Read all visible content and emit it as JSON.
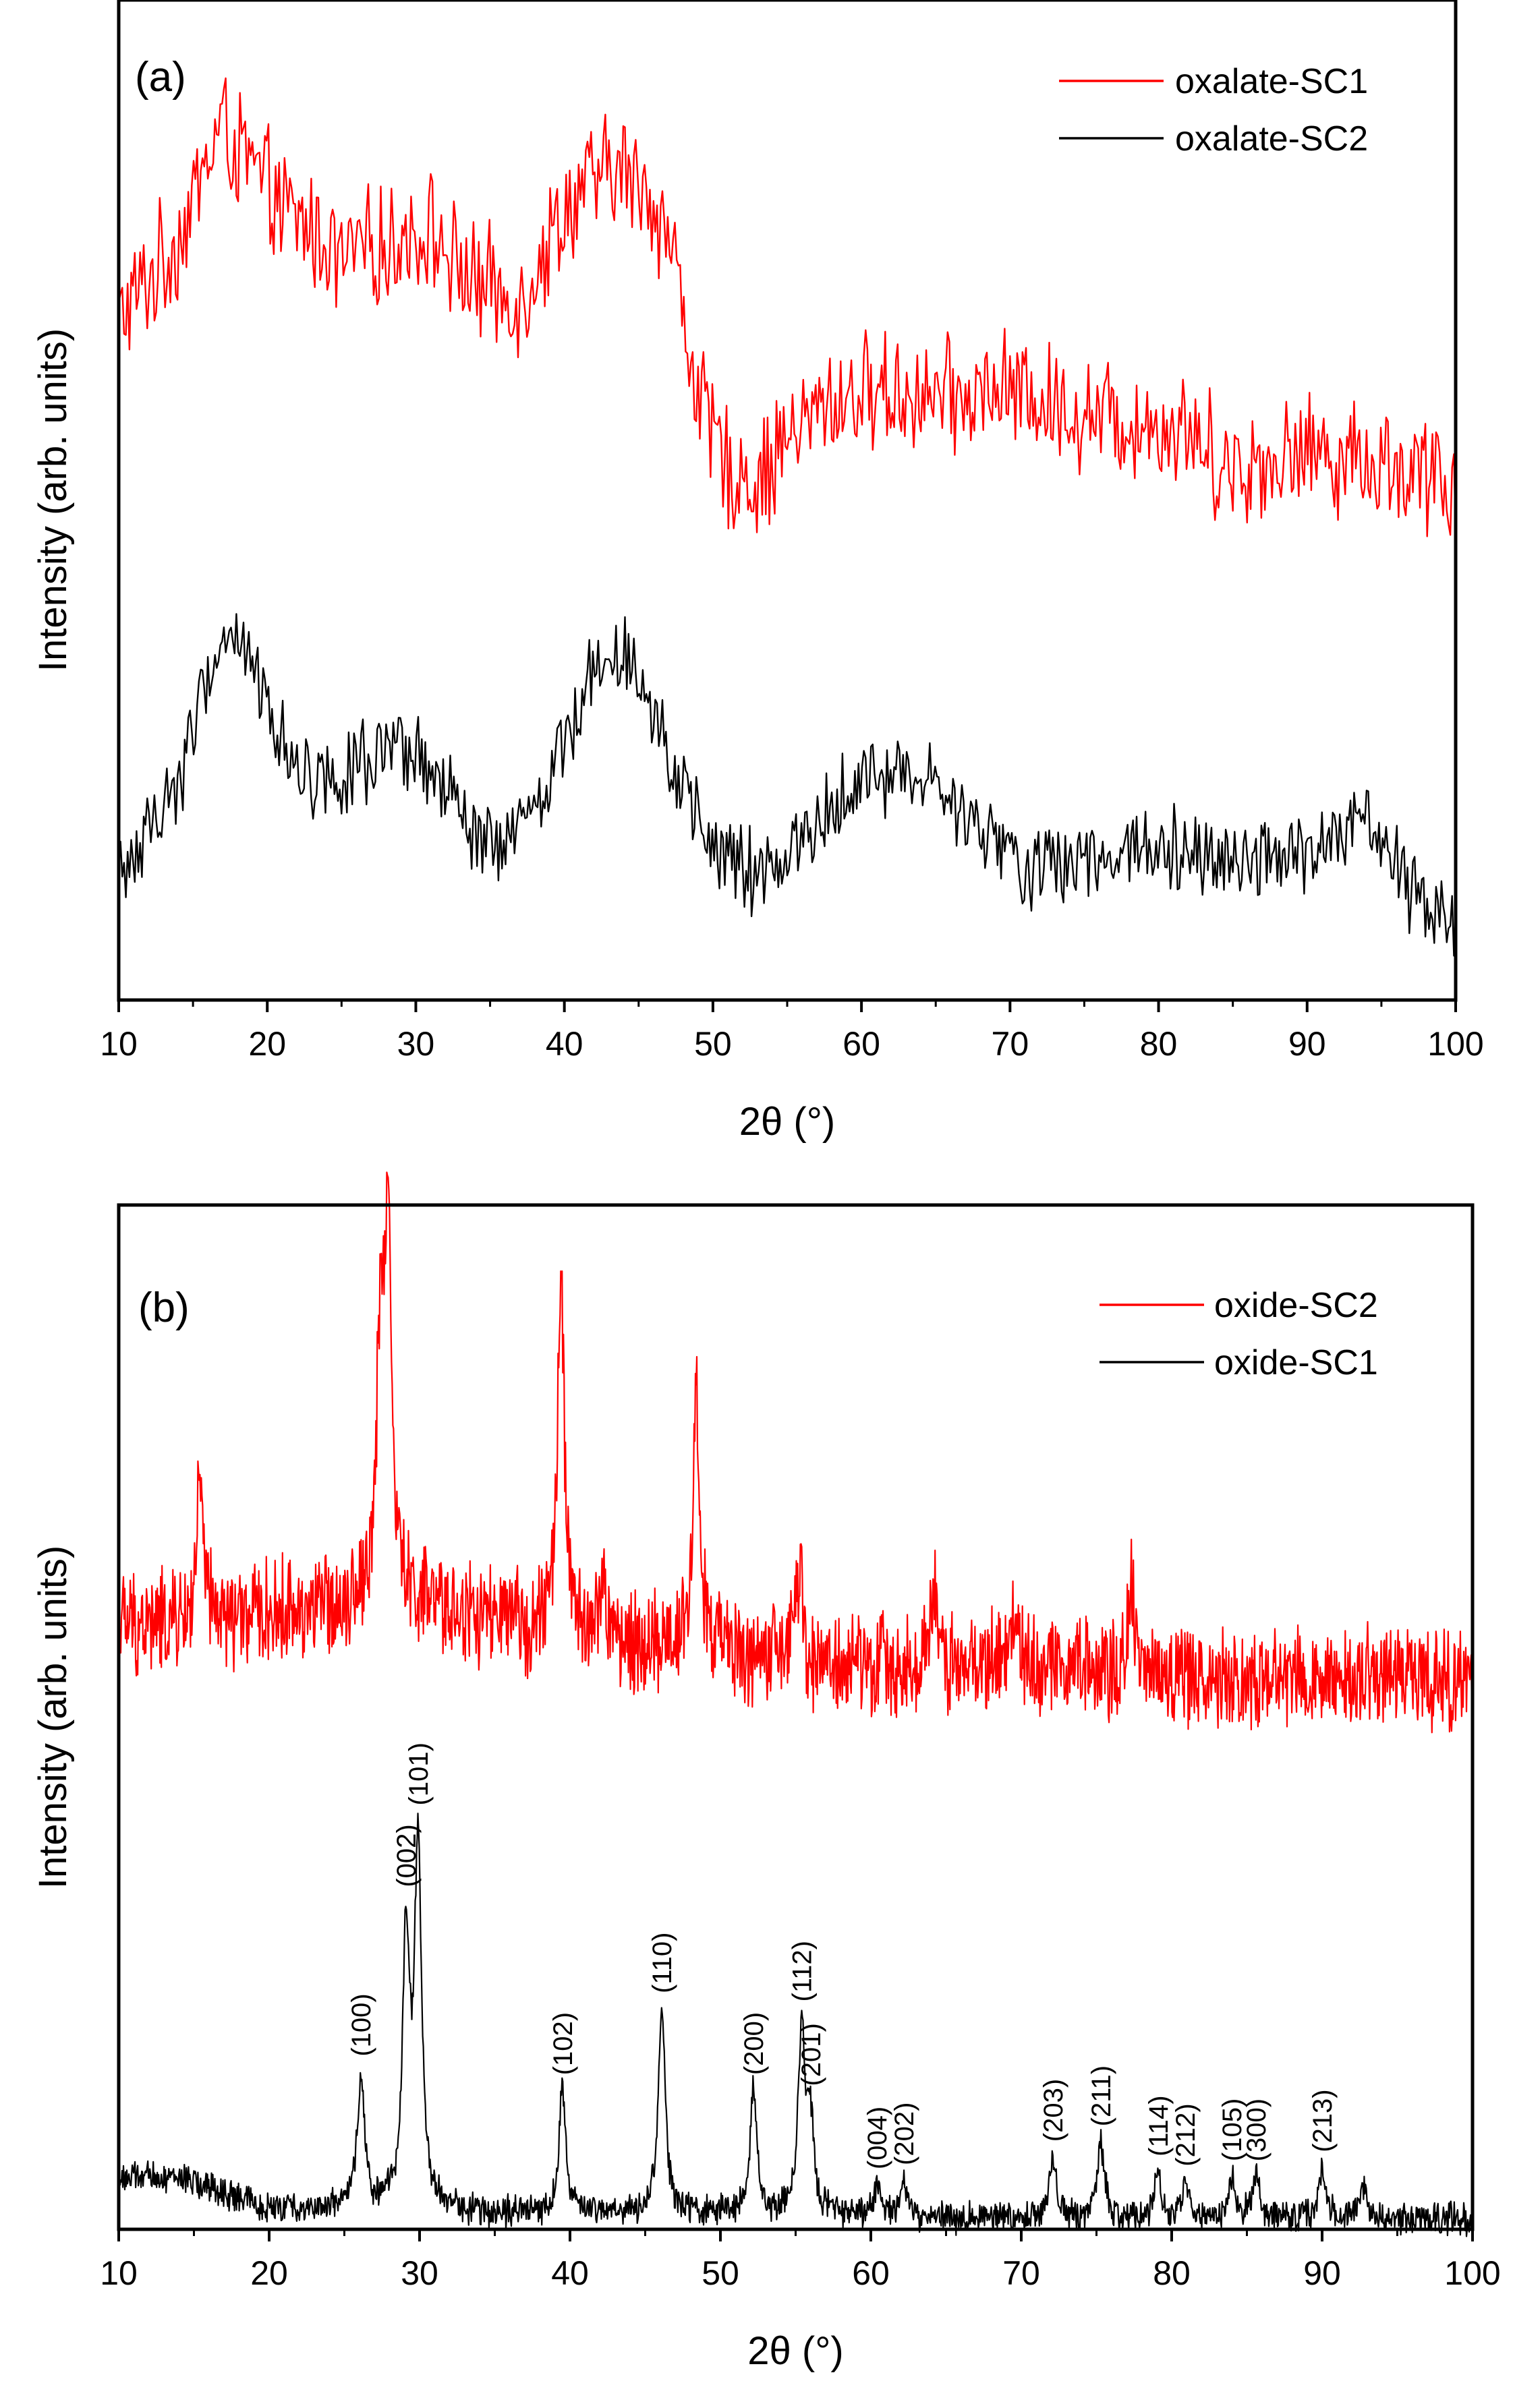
{
  "chart_data": [
    {
      "panel_label": "(a)",
      "type": "line",
      "title": "",
      "xlabel": "2θ (°)",
      "ylabel": "Intensity (arb. units)",
      "xlim": [
        10,
        100
      ],
      "ylim": [
        0,
        100
      ],
      "xticks": [
        10,
        20,
        30,
        40,
        50,
        60,
        70,
        80,
        90,
        100
      ],
      "grid": false,
      "legend_position": "top-right",
      "series": [
        {
          "name": "oxalate-SC1",
          "color": "#ff0000",
          "noise": 7,
          "x": [
            10,
            12,
            14,
            16,
            17,
            18,
            19.5,
            21,
            23,
            25,
            27,
            29,
            31,
            33,
            35,
            37,
            38,
            40,
            42,
            44,
            46,
            47.5,
            49,
            51,
            53,
            55,
            58,
            62,
            66,
            70,
            74,
            78,
            82,
            85,
            88,
            91,
            94,
            97,
            100
          ],
          "y": [
            68,
            72,
            76,
            84,
            88,
            85,
            82,
            79,
            77,
            74,
            75,
            76,
            77,
            73,
            71,
            70,
            73,
            79,
            82,
            83,
            80,
            74,
            60,
            53,
            52,
            56,
            60,
            61,
            60,
            61,
            59,
            58,
            57,
            53,
            54,
            55,
            54,
            53,
            51
          ]
        },
        {
          "name": "oxalate-SC2",
          "color": "#000000",
          "noise": 5,
          "x": [
            10,
            12,
            14,
            16,
            17,
            18,
            19,
            21,
            23,
            25,
            28,
            30,
            32,
            34,
            36,
            38,
            40,
            42,
            43.5,
            45,
            46.5,
            48,
            50,
            53,
            56,
            59,
            62,
            65,
            68,
            71,
            75,
            79,
            83,
            87,
            91,
            94,
            96,
            98,
            100
          ],
          "y": [
            12,
            17,
            22,
            32,
            36,
            37,
            33,
            26,
            22,
            23,
            24,
            24,
            21,
            16,
            15,
            19,
            26,
            33,
            36,
            33,
            28,
            20,
            15,
            12,
            16,
            21,
            23,
            21,
            17,
            13,
            14,
            16,
            15,
            14,
            15,
            18,
            13,
            9,
            8
          ]
        }
      ]
    },
    {
      "panel_label": "(b)",
      "type": "line",
      "title": "",
      "xlabel": "2θ (°)",
      "ylabel": "Intensity (arb. units)",
      "xlim": [
        10,
        100
      ],
      "ylim": [
        0,
        100
      ],
      "xticks": [
        10,
        20,
        30,
        40,
        50,
        60,
        70,
        80,
        90,
        100
      ],
      "grid": false,
      "legend_position": "top-right",
      "series": [
        {
          "name": "oxide-SC2",
          "color": "#ff0000",
          "noise": 6,
          "baseline": {
            "x": [
              10,
              15,
              20,
              25,
              27,
              30,
              33,
              36,
              40,
              44,
              48,
              52,
              56,
              60,
              65,
              70,
              75,
              80,
              85,
              90,
              95,
              100
            ],
            "y": [
              59,
              59,
              60,
              61,
              62,
              61,
              60,
              59,
              58,
              57,
              57,
              56,
              55,
              55,
              55,
              55,
              55,
              54,
              54,
              54,
              54,
              53
            ]
          },
          "peaks": [
            {
              "x": 15.4,
              "height": 13
            },
            {
              "x": 27.4,
              "height": 24
            },
            {
              "x": 27.9,
              "height": 35
            },
            {
              "x": 39.4,
              "height": 34
            },
            {
              "x": 42.2,
              "height": 5
            },
            {
              "x": 48.4,
              "height": 24
            },
            {
              "x": 55.2,
              "height": 9
            },
            {
              "x": 64.2,
              "height": 7
            },
            {
              "x": 69.6,
              "height": 6
            },
            {
              "x": 77.3,
              "height": 8
            }
          ]
        },
        {
          "name": "oxide-SC1",
          "color": "#000000",
          "noise": 1.8,
          "baseline": {
            "x": [
              10,
              14,
              16,
              20,
              25,
              30,
              35,
              40,
              45,
              50,
              55,
              60,
              70,
              80,
              90,
              100
            ],
            "y": [
              5,
              5,
              4,
              2,
              2,
              2,
              1.5,
              1.5,
              1.5,
              1.5,
              1.2,
              1.2,
              1,
              1,
              1,
              1
            ]
          },
          "peaks": [
            {
              "x": 26.1,
              "height": 13,
              "label": "(100)"
            },
            {
              "x": 29.1,
              "height": 26,
              "label": "(002)"
            },
            {
              "x": 29.9,
              "height": 35,
              "label": "(101)"
            },
            {
              "x": 39.5,
              "height": 12,
              "label": "(102)"
            },
            {
              "x": 46.1,
              "height": 20,
              "label": "(110)"
            },
            {
              "x": 52.2,
              "height": 12,
              "label": "(200)"
            },
            {
              "x": 55.4,
              "height": 18,
              "label": "(112)"
            },
            {
              "x": 56.0,
              "height": 8,
              "label": "(201)"
            },
            {
              "x": 60.4,
              "height": 3,
              "label": "(004)"
            },
            {
              "x": 62.2,
              "height": 3.5,
              "label": "(202)"
            },
            {
              "x": 72.1,
              "height": 6,
              "label": "(203)"
            },
            {
              "x": 75.3,
              "height": 7.5,
              "label": "(211)"
            },
            {
              "x": 79.1,
              "height": 4.5,
              "label": "(114)"
            },
            {
              "x": 80.9,
              "height": 3.5,
              "label": "(212)"
            },
            {
              "x": 84.0,
              "height": 4,
              "label": "(105)"
            },
            {
              "x": 85.6,
              "height": 4,
              "label": "(300)"
            },
            {
              "x": 90.0,
              "height": 5,
              "label": "(213)"
            },
            {
              "x": 92.7,
              "height": 3
            }
          ]
        }
      ]
    }
  ]
}
